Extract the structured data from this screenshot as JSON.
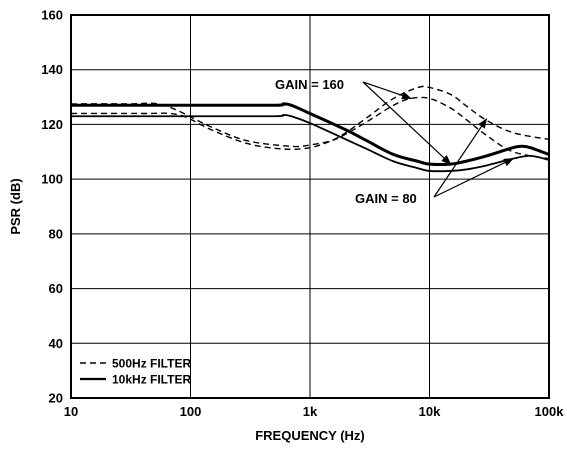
{
  "chart_data": {
    "type": "line",
    "xlabel": "FREQUENCY (Hz)",
    "ylabel": "PSR (dB)",
    "x_scale": "log",
    "xlim": [
      10,
      100000
    ],
    "ylim": [
      20,
      160
    ],
    "grid": true,
    "x_ticks": [
      {
        "value": 10,
        "label": "10"
      },
      {
        "value": 100,
        "label": "100"
      },
      {
        "value": 1000,
        "label": "1k"
      },
      {
        "value": 10000,
        "label": "10k"
      },
      {
        "value": 100000,
        "label": "100k"
      }
    ],
    "y_ticks": [
      20,
      40,
      60,
      80,
      100,
      120,
      140,
      160
    ],
    "legend": {
      "position": "bottom-left",
      "entries": [
        {
          "label": "500Hz FILTER",
          "style": "dashed"
        },
        {
          "label": "10kHz FILTER",
          "style": "solid"
        }
      ]
    },
    "series": [
      {
        "filter": "500Hz FILTER",
        "gain": "160",
        "style": "dashed",
        "x": [
          10,
          40,
          80,
          150,
          300,
          600,
          1000,
          1500,
          2000,
          3000,
          5000,
          8000,
          10000,
          15000,
          20000,
          30000,
          50000,
          100000
        ],
        "y": [
          124,
          124,
          123.5,
          118,
          113,
          111,
          111.5,
          114,
          117,
          122.5,
          129.5,
          133.5,
          133.5,
          131,
          127,
          121.5,
          117,
          114.5
        ]
      },
      {
        "filter": "500Hz FILTER",
        "gain": "80",
        "style": "dashed",
        "x": [
          10,
          30,
          60,
          150,
          300,
          700,
          1000,
          1500,
          2000,
          3000,
          5000,
          7000,
          10000,
          15000,
          20000,
          30000,
          50000,
          100000
        ],
        "y": [
          127.5,
          127.5,
          127,
          119,
          114,
          112,
          112.5,
          114,
          116.5,
          121,
          127,
          129.5,
          129.5,
          126,
          122,
          116,
          110,
          107.5
        ]
      },
      {
        "filter": "10kHz FILTER",
        "gain": "160",
        "style": "solid",
        "x": [
          10,
          100,
          500,
          600,
          700,
          1000,
          2000,
          3000,
          5000,
          8000,
          10000,
          15000,
          20000,
          30000,
          50000,
          60000,
          70000,
          100000
        ],
        "y": [
          127,
          127,
          127,
          127.5,
          127,
          124,
          118,
          114,
          109,
          106.5,
          105.5,
          105.5,
          106.5,
          108.5,
          111.5,
          112,
          111.5,
          109
        ]
      },
      {
        "filter": "10kHz FILTER",
        "gain": "80",
        "style": "solid",
        "x": [
          10,
          100,
          500,
          600,
          700,
          1000,
          2000,
          3000,
          5000,
          8000,
          10000,
          15000,
          20000,
          30000,
          50000,
          70000,
          100000
        ],
        "y": [
          123,
          123,
          123,
          123.5,
          123,
          120.5,
          114.5,
          111,
          106.5,
          104,
          103,
          103,
          103.5,
          105,
          107.5,
          108.5,
          107
        ]
      }
    ],
    "annotations": [
      {
        "text": "GAIN = 160",
        "arrow_targets": [
          {
            "x": 7000,
            "y": 129.5
          },
          {
            "x": 15000,
            "y": 105.5
          }
        ]
      },
      {
        "text": "GAIN = 80",
        "arrow_targets": [
          {
            "x": 30000,
            "y": 122
          },
          {
            "x": 50000,
            "y": 107.5
          }
        ]
      }
    ]
  }
}
